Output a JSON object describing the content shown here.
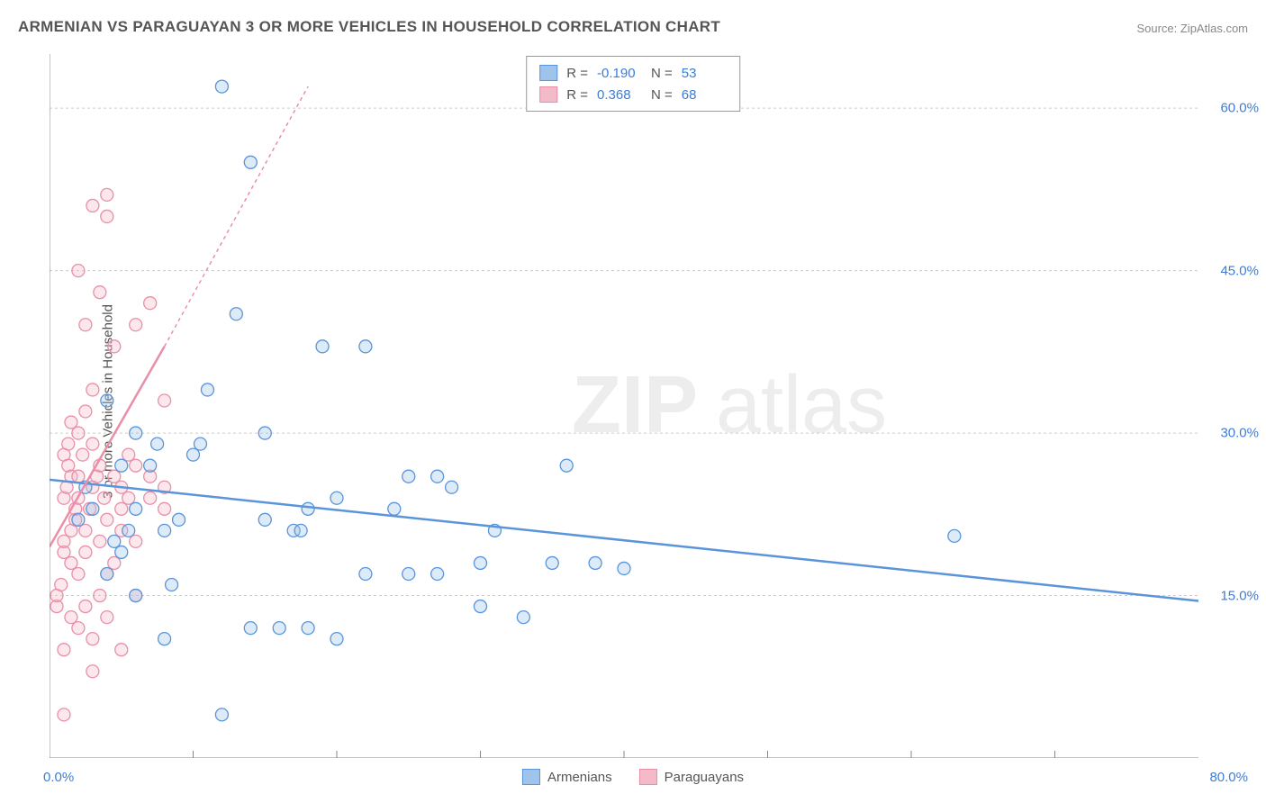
{
  "title": "ARMENIAN VS PARAGUAYAN 3 OR MORE VEHICLES IN HOUSEHOLD CORRELATION CHART",
  "source": "Source: ZipAtlas.com",
  "ylabel": "3 or more Vehicles in Household",
  "watermark_a": "ZIP",
  "watermark_b": "atlas",
  "chart": {
    "type": "scatter",
    "background": "#ffffff",
    "axis_color": "#888888",
    "grid_color": "#cccccc",
    "tick_label_color": "#3b7dd8",
    "label_color": "#555555",
    "title_color": "#555555",
    "title_fontsize": 17,
    "label_fontsize": 15,
    "tick_fontsize": 15,
    "xlim": [
      0,
      80
    ],
    "ylim": [
      0,
      65
    ],
    "y_ticks": [
      15,
      30,
      45,
      60
    ],
    "y_tick_labels": [
      "15.0%",
      "30.0%",
      "45.0%",
      "60.0%"
    ],
    "x_corner_labels": {
      "min": "0.0%",
      "max": "80.0%"
    },
    "x_tick_positions": [
      10,
      20,
      30,
      40,
      50,
      60,
      70
    ],
    "marker_radius": 7,
    "marker_opacity": 0.35,
    "trend_line_width": 2.5
  },
  "series": {
    "armenians": {
      "label": "Armenians",
      "color_stroke": "#5a94da",
      "color_fill": "#9fc4ec",
      "R": "-0.190",
      "N": "53",
      "trend": {
        "x1": 0,
        "y1": 25.7,
        "x2": 80,
        "y2": 14.5,
        "extend_dash": false
      },
      "points": [
        [
          2,
          22
        ],
        [
          2.5,
          25
        ],
        [
          3,
          23
        ],
        [
          4,
          33
        ],
        [
          4.5,
          20
        ],
        [
          5,
          19
        ],
        [
          5,
          27
        ],
        [
          5.5,
          21
        ],
        [
          6,
          15
        ],
        [
          6,
          23
        ],
        [
          7,
          27
        ],
        [
          7.5,
          29
        ],
        [
          8,
          11
        ],
        [
          8,
          21
        ],
        [
          8.5,
          16
        ],
        [
          9,
          22
        ],
        [
          10,
          28
        ],
        [
          10.5,
          29
        ],
        [
          11,
          34
        ],
        [
          12,
          62
        ],
        [
          13,
          41
        ],
        [
          14,
          55
        ],
        [
          15,
          22
        ],
        [
          15,
          30
        ],
        [
          16,
          12
        ],
        [
          17,
          21
        ],
        [
          17.5,
          21
        ],
        [
          18,
          23
        ],
        [
          18,
          12
        ],
        [
          19,
          38
        ],
        [
          20,
          11
        ],
        [
          20,
          24
        ],
        [
          22,
          38
        ],
        [
          22,
          17
        ],
        [
          24,
          23
        ],
        [
          25,
          26
        ],
        [
          25,
          17
        ],
        [
          27,
          17
        ],
        [
          27,
          26
        ],
        [
          28,
          25
        ],
        [
          30,
          14
        ],
        [
          30,
          18
        ],
        [
          31,
          21
        ],
        [
          33,
          13
        ],
        [
          35,
          18
        ],
        [
          36,
          27
        ],
        [
          38,
          18
        ],
        [
          40,
          17.5
        ],
        [
          63,
          20.5
        ],
        [
          12,
          4
        ],
        [
          14,
          12
        ],
        [
          4,
          17
        ],
        [
          6,
          30
        ]
      ]
    },
    "paraguayans": {
      "label": "Paraguayans",
      "color_stroke": "#e98fa8",
      "color_fill": "#f3bac9",
      "R": "0.368",
      "N": "68",
      "trend": {
        "x1": 0,
        "y1": 19.5,
        "x2": 8,
        "y2": 38,
        "extend_dash": true,
        "dash_x2": 18,
        "dash_y2": 62
      },
      "points": [
        [
          0.5,
          14
        ],
        [
          0.5,
          15
        ],
        [
          0.8,
          16
        ],
        [
          1,
          4
        ],
        [
          1,
          19
        ],
        [
          1,
          20
        ],
        [
          1,
          24
        ],
        [
          1,
          28
        ],
        [
          1.2,
          25
        ],
        [
          1.3,
          27
        ],
        [
          1.3,
          29
        ],
        [
          1.5,
          18
        ],
        [
          1.5,
          21
        ],
        [
          1.5,
          26
        ],
        [
          1.5,
          31
        ],
        [
          1.8,
          22
        ],
        [
          1.8,
          23
        ],
        [
          2,
          12
        ],
        [
          2,
          17
        ],
        [
          2,
          24
        ],
        [
          2,
          26
        ],
        [
          2,
          30
        ],
        [
          2,
          45
        ],
        [
          2.3,
          28
        ],
        [
          2.5,
          14
        ],
        [
          2.5,
          19
        ],
        [
          2.5,
          21
        ],
        [
          2.5,
          32
        ],
        [
          2.5,
          40
        ],
        [
          2.8,
          23
        ],
        [
          3,
          8
        ],
        [
          3,
          11
        ],
        [
          3,
          25
        ],
        [
          3,
          29
        ],
        [
          3,
          34
        ],
        [
          3,
          51
        ],
        [
          3.3,
          26
        ],
        [
          3.5,
          15
        ],
        [
          3.5,
          20
        ],
        [
          3.5,
          27
        ],
        [
          3.5,
          43
        ],
        [
          3.8,
          24
        ],
        [
          4,
          13
        ],
        [
          4,
          17
        ],
        [
          4,
          22
        ],
        [
          4,
          50
        ],
        [
          4,
          52
        ],
        [
          4.5,
          18
        ],
        [
          4.5,
          26
        ],
        [
          4.5,
          38
        ],
        [
          5,
          10
        ],
        [
          5,
          21
        ],
        [
          5,
          23
        ],
        [
          5,
          25
        ],
        [
          5.5,
          24
        ],
        [
          5.5,
          28
        ],
        [
          6,
          15
        ],
        [
          6,
          20
        ],
        [
          6,
          27
        ],
        [
          6,
          40
        ],
        [
          7,
          24
        ],
        [
          7,
          26
        ],
        [
          7,
          42
        ],
        [
          8,
          23
        ],
        [
          8,
          25
        ],
        [
          8,
          33
        ],
        [
          1,
          10
        ],
        [
          1.5,
          13
        ]
      ]
    }
  },
  "legend_top": {
    "R_label": "R =",
    "N_label": "N ="
  }
}
